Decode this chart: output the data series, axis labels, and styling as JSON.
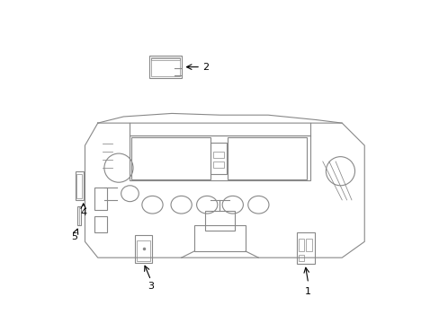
{
  "title": "",
  "background_color": "#ffffff",
  "line_color": "#888888",
  "label_color": "#000000",
  "fig_width": 4.89,
  "fig_height": 3.6,
  "dpi": 100
}
